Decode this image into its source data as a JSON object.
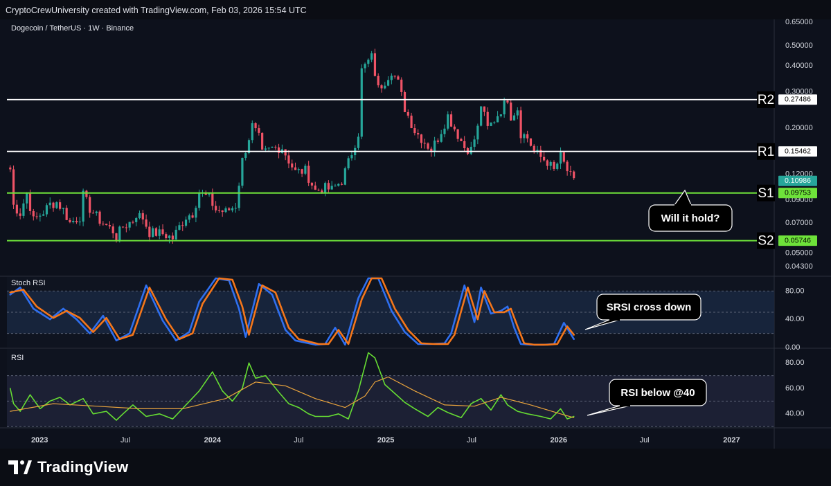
{
  "header": {
    "credit": "CryptoCrewUniversity created with TradingView.com, Feb 03, 2026 15:54 UTC"
  },
  "footer": {
    "brand": "TradingView"
  },
  "chart_data": [
    {
      "type": "candlestick",
      "title": "Dogecoin / TetherUS · 1W · Binance",
      "y_scale": "log",
      "ylim": [
        0.039,
        0.67
      ],
      "y_ticks": [
        "0.65000",
        "0.50000",
        "0.40000",
        "0.30000",
        "0.20000",
        "0.12000",
        "0.09000",
        "0.07000",
        "0.05000",
        "0.04300"
      ],
      "last_price": "0.10986",
      "levels": [
        {
          "label": "R2",
          "value": "0.27486",
          "color": "#ffffff"
        },
        {
          "label": "R1",
          "value": "0.15462",
          "color": "#ffffff"
        },
        {
          "label": "S1",
          "value": "0.09753",
          "color": "#6ee23a"
        },
        {
          "label": "S2",
          "value": "0.05746",
          "color": "#6ee23a"
        }
      ],
      "annotation": "Will it hold?",
      "anchors": [
        [
          "2022-10-31",
          0.127
        ],
        [
          "2022-11-07",
          0.085
        ],
        [
          "2022-11-21",
          0.078
        ],
        [
          "2022-12-05",
          0.098
        ],
        [
          "2022-12-19",
          0.072
        ],
        [
          "2023-01-09",
          0.079
        ],
        [
          "2023-01-23",
          0.086
        ],
        [
          "2023-02-06",
          0.088
        ],
        [
          "2023-02-20",
          0.081
        ],
        [
          "2023-03-06",
          0.07
        ],
        [
          "2023-03-27",
          0.075
        ],
        [
          "2023-04-03",
          0.095
        ],
        [
          "2023-04-17",
          0.082
        ],
        [
          "2023-05-08",
          0.072
        ],
        [
          "2023-06-05",
          0.064
        ],
        [
          "2023-06-12",
          0.06
        ],
        [
          "2023-06-26",
          0.067
        ],
        [
          "2023-07-17",
          0.072
        ],
        [
          "2023-07-24",
          0.077
        ],
        [
          "2023-08-07",
          0.074
        ],
        [
          "2023-08-21",
          0.063
        ],
        [
          "2023-09-18",
          0.062
        ],
        [
          "2023-10-09",
          0.059
        ],
        [
          "2023-10-23",
          0.067
        ],
        [
          "2023-11-06",
          0.075
        ],
        [
          "2023-11-20",
          0.078
        ],
        [
          "2023-12-04",
          0.098
        ],
        [
          "2023-12-25",
          0.092
        ],
        [
          "2024-01-08",
          0.081
        ],
        [
          "2024-01-29",
          0.079
        ],
        [
          "2024-02-19",
          0.085
        ],
        [
          "2024-03-04",
          0.14
        ],
        [
          "2024-03-25",
          0.205
        ],
        [
          "2024-04-08",
          0.18
        ],
        [
          "2024-04-15",
          0.15
        ],
        [
          "2024-05-06",
          0.16
        ],
        [
          "2024-05-27",
          0.162
        ],
        [
          "2024-06-10",
          0.14
        ],
        [
          "2024-06-24",
          0.123
        ],
        [
          "2024-07-15",
          0.125
        ],
        [
          "2024-08-05",
          0.1
        ],
        [
          "2024-08-26",
          0.103
        ],
        [
          "2024-09-09",
          0.101
        ],
        [
          "2024-09-30",
          0.112
        ],
        [
          "2024-10-14",
          0.137
        ],
        [
          "2024-11-04",
          0.19
        ],
        [
          "2024-11-11",
          0.38
        ],
        [
          "2024-11-25",
          0.42
        ],
        [
          "2024-12-02",
          0.44
        ],
        [
          "2024-12-16",
          0.31
        ],
        [
          "2024-12-30",
          0.34
        ],
        [
          "2025-01-13",
          0.38
        ],
        [
          "2025-01-27",
          0.33
        ],
        [
          "2025-02-10",
          0.25
        ],
        [
          "2025-03-03",
          0.195
        ],
        [
          "2025-03-24",
          0.172
        ],
        [
          "2025-04-07",
          0.158
        ],
        [
          "2025-04-21",
          0.18
        ],
        [
          "2025-05-12",
          0.23
        ],
        [
          "2025-05-26",
          0.2
        ],
        [
          "2025-06-16",
          0.162
        ],
        [
          "2025-06-30",
          0.158
        ],
        [
          "2025-07-14",
          0.2
        ],
        [
          "2025-07-21",
          0.26
        ],
        [
          "2025-08-04",
          0.2
        ],
        [
          "2025-08-18",
          0.22
        ],
        [
          "2025-09-08",
          0.26
        ],
        [
          "2025-09-15",
          0.28
        ],
        [
          "2025-09-22",
          0.23
        ],
        [
          "2025-10-06",
          0.25
        ],
        [
          "2025-10-13",
          0.19
        ],
        [
          "2025-10-27",
          0.18
        ],
        [
          "2025-11-10",
          0.155
        ],
        [
          "2025-11-24",
          0.145
        ],
        [
          "2025-12-08",
          0.138
        ],
        [
          "2025-12-22",
          0.125
        ],
        [
          "2026-01-05",
          0.146
        ],
        [
          "2026-01-19",
          0.125
        ],
        [
          "2026-02-02",
          0.11
        ]
      ]
    },
    {
      "type": "line",
      "title": "Stoch RSI",
      "ylim": [
        0,
        100
      ],
      "y_ticks": [
        "80.00",
        "40.00",
        "0.00"
      ],
      "band": [
        20,
        80
      ],
      "annotation": "SRSI cross down",
      "series": [
        {
          "color": "#2f6fef",
          "x": [
            "2022-10-31",
            "2022-11-21",
            "2022-12-19",
            "2023-01-23",
            "2023-02-20",
            "2023-03-20",
            "2023-04-17",
            "2023-05-15",
            "2023-06-12",
            "2023-07-10",
            "2023-08-14",
            "2023-09-18",
            "2023-10-16",
            "2023-11-13",
            "2023-12-04",
            "2024-01-08",
            "2024-02-05",
            "2024-02-26",
            "2024-03-11",
            "2024-04-08",
            "2024-05-06",
            "2024-06-03",
            "2024-06-24",
            "2024-08-05",
            "2024-08-26",
            "2024-09-16",
            "2024-10-07",
            "2024-11-04",
            "2024-11-25",
            "2024-12-16",
            "2025-01-13",
            "2025-02-10",
            "2025-03-10",
            "2025-04-07",
            "2025-05-05",
            "2025-05-19",
            "2025-06-16",
            "2025-07-07",
            "2025-07-21",
            "2025-08-11",
            "2025-09-01",
            "2025-09-15",
            "2025-09-29",
            "2025-10-13",
            "2025-11-03",
            "2025-12-01",
            "2025-12-22",
            "2026-01-12",
            "2026-02-02"
          ],
          "values": [
            75,
            85,
            55,
            40,
            55,
            40,
            20,
            45,
            10,
            20,
            88,
            38,
            10,
            22,
            65,
            98,
            95,
            55,
            15,
            90,
            75,
            25,
            10,
            4,
            5,
            28,
            4,
            70,
            98,
            98,
            52,
            22,
            5,
            5,
            6,
            20,
            88,
            36,
            85,
            48,
            52,
            58,
            28,
            5,
            4,
            4,
            5,
            35,
            12
          ]
        },
        {
          "color": "#f5761a",
          "x": [
            "2022-10-31",
            "2022-11-28",
            "2022-12-26",
            "2023-01-30",
            "2023-02-27",
            "2023-03-27",
            "2023-04-24",
            "2023-05-22",
            "2023-06-19",
            "2023-07-17",
            "2023-08-21",
            "2023-09-25",
            "2023-10-23",
            "2023-11-20",
            "2023-12-11",
            "2024-01-15",
            "2024-02-12",
            "2024-03-04",
            "2024-03-18",
            "2024-04-15",
            "2024-05-13",
            "2024-06-10",
            "2024-07-01",
            "2024-08-12",
            "2024-09-02",
            "2024-09-23",
            "2024-10-14",
            "2024-11-11",
            "2024-12-02",
            "2024-12-23",
            "2025-01-20",
            "2025-02-17",
            "2025-03-17",
            "2025-04-14",
            "2025-05-12",
            "2025-05-26",
            "2025-06-23",
            "2025-07-14",
            "2025-07-28",
            "2025-08-18",
            "2025-09-08",
            "2025-09-22",
            "2025-10-06",
            "2025-10-20",
            "2025-11-10",
            "2025-12-08",
            "2025-12-29",
            "2026-01-19",
            "2026-02-02"
          ],
          "values": [
            78,
            82,
            58,
            42,
            52,
            42,
            22,
            42,
            12,
            18,
            85,
            40,
            12,
            20,
            62,
            98,
            96,
            58,
            18,
            88,
            78,
            28,
            12,
            5,
            5,
            25,
            5,
            68,
            98,
            98,
            55,
            25,
            6,
            5,
            5,
            18,
            85,
            40,
            80,
            50,
            50,
            55,
            30,
            6,
            4,
            4,
            5,
            30,
            18
          ]
        }
      ]
    },
    {
      "type": "line",
      "title": "RSI",
      "ylim": [
        29,
        91
      ],
      "y_ticks": [
        "80.00",
        "60.00",
        "40.00"
      ],
      "band": [
        30,
        70
      ],
      "annotation": "RSI below @40",
      "series": [
        {
          "color": "#66dd33",
          "x": [
            "2022-10-31",
            "2022-11-07",
            "2022-11-21",
            "2022-12-12",
            "2023-01-02",
            "2023-01-23",
            "2023-02-13",
            "2023-03-06",
            "2023-04-03",
            "2023-04-24",
            "2023-05-22",
            "2023-06-12",
            "2023-06-26",
            "2023-07-17",
            "2023-08-14",
            "2023-09-11",
            "2023-10-09",
            "2023-11-06",
            "2023-12-04",
            "2024-01-01",
            "2024-01-22",
            "2024-02-12",
            "2024-03-04",
            "2024-03-18",
            "2024-04-01",
            "2024-04-22",
            "2024-05-20",
            "2024-06-10",
            "2024-07-01",
            "2024-07-22",
            "2024-08-05",
            "2024-09-02",
            "2024-09-23",
            "2024-10-14",
            "2024-11-04",
            "2024-11-25",
            "2024-12-09",
            "2024-12-30",
            "2025-01-20",
            "2025-02-10",
            "2025-03-03",
            "2025-03-31",
            "2025-04-21",
            "2025-05-12",
            "2025-06-09",
            "2025-06-30",
            "2025-07-21",
            "2025-08-11",
            "2025-09-01",
            "2025-09-15",
            "2025-10-06",
            "2025-10-27",
            "2025-11-24",
            "2025-12-15",
            "2026-01-05",
            "2026-01-19",
            "2026-02-02"
          ],
          "values": [
            60,
            48,
            42,
            55,
            44,
            50,
            53,
            47,
            52,
            40,
            42,
            35,
            40,
            47,
            38,
            40,
            36,
            47,
            58,
            73,
            58,
            50,
            60,
            80,
            68,
            70,
            57,
            48,
            45,
            40,
            38,
            38,
            40,
            36,
            58,
            88,
            84,
            63,
            56,
            49,
            44,
            38,
            45,
            41,
            37,
            48,
            52,
            43,
            55,
            47,
            42,
            40,
            38,
            36,
            44,
            36,
            38
          ]
        },
        {
          "color": "#e8a33d",
          "x": [
            "2022-10-31",
            "2023-01-30",
            "2023-05-01",
            "2023-07-31",
            "2023-10-30",
            "2024-01-29",
            "2024-04-01",
            "2024-06-03",
            "2024-08-05",
            "2024-10-07",
            "2024-11-18",
            "2024-12-09",
            "2025-01-06",
            "2025-03-03",
            "2025-05-05",
            "2025-07-07",
            "2025-09-01",
            "2025-11-03",
            "2026-01-05",
            "2026-02-02"
          ],
          "values": [
            42,
            48,
            46,
            44,
            44,
            52,
            65,
            62,
            52,
            45,
            54,
            65,
            69,
            58,
            47,
            46,
            53,
            47,
            40,
            37
          ]
        }
      ]
    }
  ],
  "x_axis": {
    "ticks": [
      "2023",
      "Jul",
      "2024",
      "Jul",
      "2025",
      "Jul",
      "2026",
      "Jul",
      "2027"
    ]
  }
}
